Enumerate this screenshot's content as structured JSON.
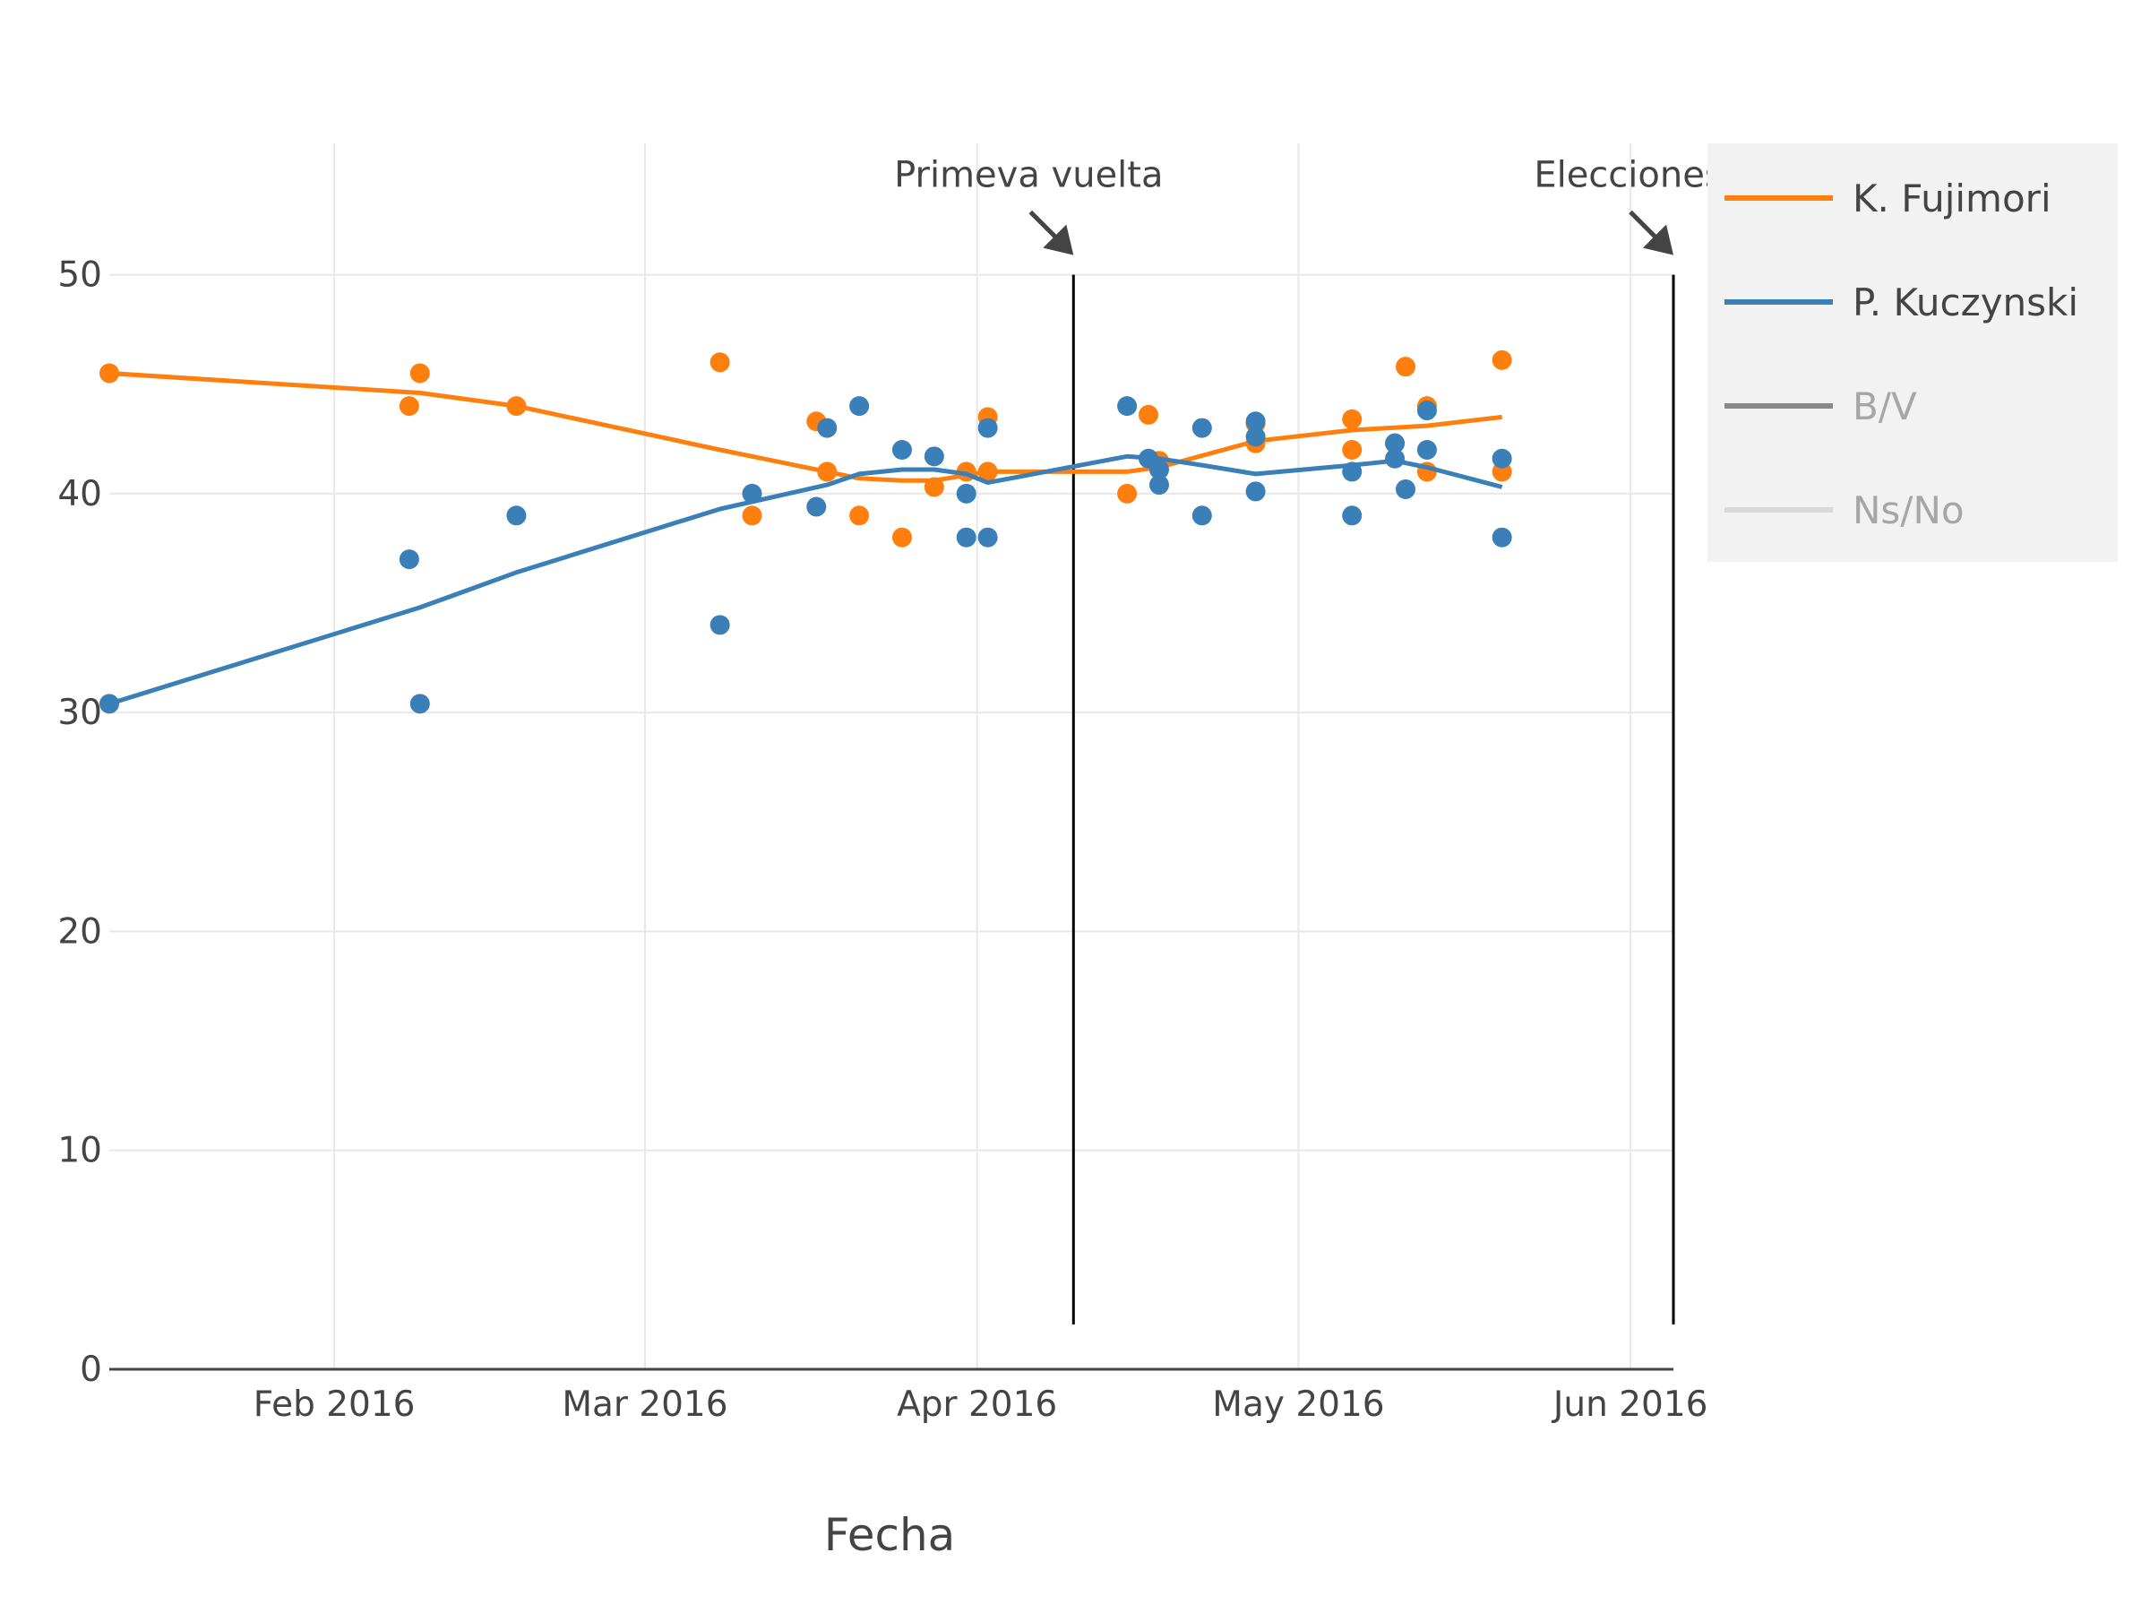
{
  "chart_data": {
    "type": "line",
    "xlabel": "Fecha",
    "ylabel": "",
    "xlim": [
      "2016-01-11",
      "2016-06-05"
    ],
    "ylim": [
      0,
      56
    ],
    "y_ticks": [
      0,
      10,
      20,
      30,
      40,
      50
    ],
    "x_ticks": [
      {
        "date": "2016-02-01",
        "label": "Feb 2016"
      },
      {
        "date": "2016-03-01",
        "label": "Mar 2016"
      },
      {
        "date": "2016-04-01",
        "label": "Apr 2016"
      },
      {
        "date": "2016-05-01",
        "label": "May 2016"
      },
      {
        "date": "2016-06-01",
        "label": "Jun 2016"
      }
    ],
    "grid": true,
    "legend_position": "top-right",
    "colors": {
      "fujimori": "#ff7f0e",
      "kuczynski": "#3a7fb8",
      "bv": "#888888",
      "nsno": "#d9d9d9"
    },
    "series": [
      {
        "name": "K. Fujimori",
        "color": "#ff7f0e",
        "points": [
          [
            "2016-01-11",
            45.5
          ],
          [
            "2016-02-08",
            44.0
          ],
          [
            "2016-02-09",
            45.5
          ],
          [
            "2016-02-18",
            44.0
          ],
          [
            "2016-03-08",
            46.0
          ],
          [
            "2016-03-11",
            39.0
          ],
          [
            "2016-03-17",
            43.3
          ],
          [
            "2016-03-18",
            41.0
          ],
          [
            "2016-03-21",
            39.0
          ],
          [
            "2016-03-25",
            38.0
          ],
          [
            "2016-03-28",
            40.3
          ],
          [
            "2016-03-31",
            41.0
          ],
          [
            "2016-04-02",
            43.5
          ],
          [
            "2016-04-02",
            41.0
          ],
          [
            "2016-04-15",
            40.0
          ],
          [
            "2016-04-17",
            43.6
          ],
          [
            "2016-04-18",
            41.5
          ],
          [
            "2016-04-27",
            42.3
          ],
          [
            "2016-04-27",
            43.2
          ],
          [
            "2016-05-06",
            43.4
          ],
          [
            "2016-05-06",
            42.0
          ],
          [
            "2016-05-10",
            42.3
          ],
          [
            "2016-05-11",
            45.8
          ],
          [
            "2016-05-13",
            44.0
          ],
          [
            "2016-05-13",
            41.0
          ],
          [
            "2016-05-20",
            46.1
          ],
          [
            "2016-05-20",
            41.0
          ]
        ],
        "trend": [
          [
            "2016-01-11",
            45.5
          ],
          [
            "2016-02-09",
            44.6
          ],
          [
            "2016-02-18",
            44.0
          ],
          [
            "2016-03-08",
            42.0
          ],
          [
            "2016-03-18",
            41.0
          ],
          [
            "2016-03-21",
            40.7
          ],
          [
            "2016-03-25",
            40.6
          ],
          [
            "2016-03-28",
            40.6
          ],
          [
            "2016-04-02",
            41.0
          ],
          [
            "2016-04-15",
            41.0
          ],
          [
            "2016-04-18",
            41.2
          ],
          [
            "2016-04-27",
            42.4
          ],
          [
            "2016-05-06",
            42.9
          ],
          [
            "2016-05-13",
            43.1
          ],
          [
            "2016-05-20",
            43.5
          ]
        ]
      },
      {
        "name": "P. Kuczynski",
        "color": "#3a7fb8",
        "points": [
          [
            "2016-01-11",
            30.4
          ],
          [
            "2016-02-08",
            37.0
          ],
          [
            "2016-02-09",
            30.4
          ],
          [
            "2016-02-18",
            39.0
          ],
          [
            "2016-03-08",
            34.0
          ],
          [
            "2016-03-11",
            40.0
          ],
          [
            "2016-03-17",
            39.4
          ],
          [
            "2016-03-18",
            43.0
          ],
          [
            "2016-03-21",
            44.0
          ],
          [
            "2016-03-25",
            42.0
          ],
          [
            "2016-03-28",
            41.7
          ],
          [
            "2016-03-31",
            38.0
          ],
          [
            "2016-03-31",
            40.0
          ],
          [
            "2016-04-02",
            38.0
          ],
          [
            "2016-04-02",
            43.0
          ],
          [
            "2016-04-15",
            44.0
          ],
          [
            "2016-04-17",
            41.6
          ],
          [
            "2016-04-18",
            40.4
          ],
          [
            "2016-04-18",
            41.1
          ],
          [
            "2016-04-22",
            39.0
          ],
          [
            "2016-04-22",
            43.0
          ],
          [
            "2016-04-27",
            40.1
          ],
          [
            "2016-04-27",
            42.6
          ],
          [
            "2016-04-27",
            43.3
          ],
          [
            "2016-05-06",
            39.0
          ],
          [
            "2016-05-06",
            41.0
          ],
          [
            "2016-05-10",
            41.6
          ],
          [
            "2016-05-10",
            42.3
          ],
          [
            "2016-05-11",
            40.2
          ],
          [
            "2016-05-13",
            42.0
          ],
          [
            "2016-05-13",
            43.8
          ],
          [
            "2016-05-20",
            38.0
          ],
          [
            "2016-05-20",
            41.6
          ]
        ],
        "trend": [
          [
            "2016-01-11",
            30.4
          ],
          [
            "2016-02-09",
            34.8
          ],
          [
            "2016-02-18",
            36.4
          ],
          [
            "2016-03-08",
            39.3
          ],
          [
            "2016-03-18",
            40.4
          ],
          [
            "2016-03-21",
            40.9
          ],
          [
            "2016-03-25",
            41.1
          ],
          [
            "2016-03-28",
            41.1
          ],
          [
            "2016-03-31",
            40.9
          ],
          [
            "2016-04-02",
            40.5
          ],
          [
            "2016-04-15",
            41.7
          ],
          [
            "2016-04-18",
            41.6
          ],
          [
            "2016-04-22",
            41.3
          ],
          [
            "2016-04-27",
            40.9
          ],
          [
            "2016-05-06",
            41.3
          ],
          [
            "2016-05-10",
            41.5
          ],
          [
            "2016-05-13",
            41.2
          ],
          [
            "2016-05-20",
            40.3
          ]
        ]
      },
      {
        "name": "B/V",
        "color": "#888888",
        "visible": false,
        "points": [],
        "trend": []
      },
      {
        "name": "Ns/No",
        "color": "#d9d9d9",
        "visible": false,
        "points": [],
        "trend": []
      }
    ],
    "annotations": [
      {
        "text": "Primeva vuelta",
        "date": "2016-04-10"
      },
      {
        "text": "Elecciones",
        "date": "2016-06-05"
      }
    ]
  }
}
